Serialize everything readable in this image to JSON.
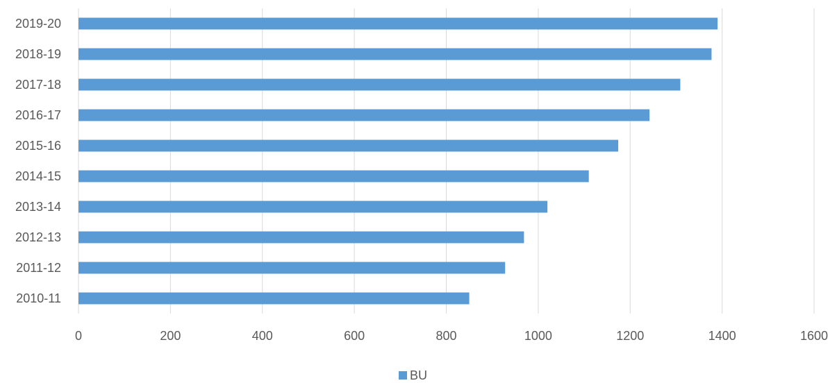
{
  "chart_data": {
    "type": "bar",
    "orientation": "horizontal",
    "categories": [
      "2019-20",
      "2018-19",
      "2017-18",
      "2016-17",
      "2015-16",
      "2014-15",
      "2013-14",
      "2012-13",
      "2011-12",
      "2010-11"
    ],
    "series": [
      {
        "name": "BU",
        "color": "#5B9BD5",
        "values": [
          1390,
          1377,
          1309,
          1242,
          1174,
          1110,
          1020,
          969,
          928,
          850
        ]
      }
    ],
    "xlim": [
      0,
      1600
    ],
    "xticks": [
      "0",
      "200",
      "400",
      "600",
      "800",
      "1000",
      "1200",
      "1400",
      "1600"
    ],
    "grid": true,
    "gridline_color": "#D9D9D9",
    "legend_position": "bottom"
  }
}
